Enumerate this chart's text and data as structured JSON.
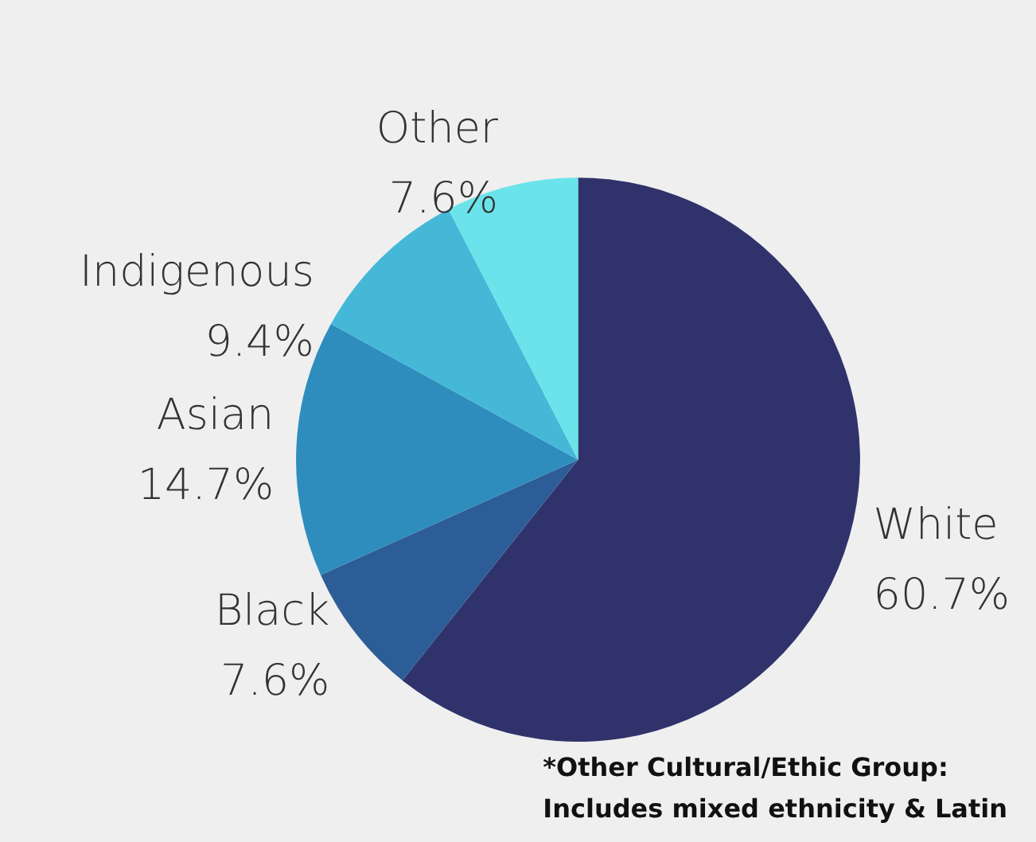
{
  "chart_data": {
    "type": "pie",
    "categories": [
      "White",
      "Black",
      "Asian",
      "Indigenous",
      "Other"
    ],
    "values": [
      60.7,
      7.6,
      14.7,
      9.4,
      7.6
    ],
    "colors": [
      "#30336b",
      "#2d5d96",
      "#2e8dbd",
      "#45b8d8",
      "#6ae4ea"
    ],
    "value_labels": [
      "60.7%",
      "7.6%",
      "14.7%",
      "9.4%",
      "7.6%"
    ],
    "annotations": [
      "*Other Cultural/Ethic Group:\nIncludes mixed ethnicity & Latin"
    ]
  }
}
